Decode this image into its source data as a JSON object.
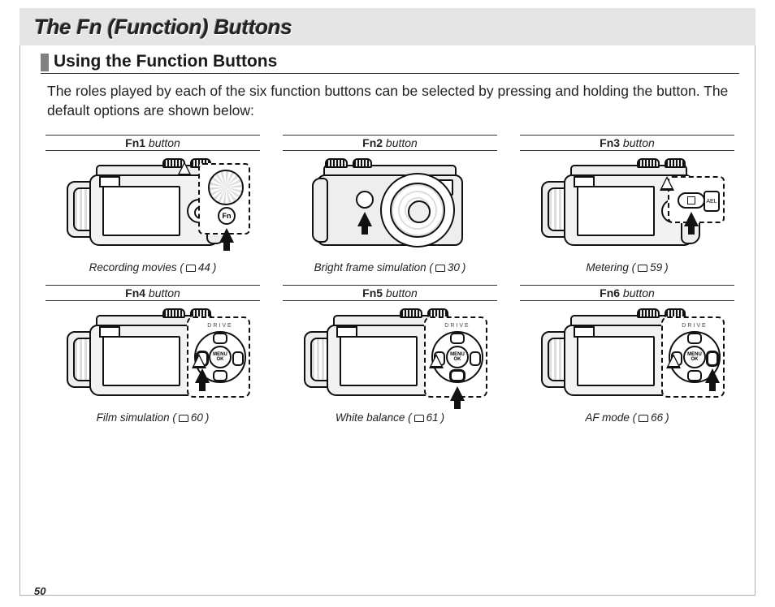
{
  "page": {
    "title": "The Fn (Function) Buttons",
    "section_heading": "Using the Function Buttons",
    "intro": "The roles played by each of the six function buttons can be selected by pressing and holding the button.  The default options are shown below:",
    "page_number": "50",
    "colors": {
      "title_bar_bg": "#e5e5e5",
      "rule": "#333333",
      "text": "#222222",
      "frame_border": "#b0b0b0"
    }
  },
  "buttons": [
    {
      "label_name": "Fn1",
      "label_word": "button",
      "caption_text": "Recording movies",
      "caption_page": "44",
      "view": "rear",
      "detail": "fn1"
    },
    {
      "label_name": "Fn2",
      "label_word": "button",
      "caption_text": "Bright frame simulation",
      "caption_page": "30",
      "view": "front",
      "detail": "fn2"
    },
    {
      "label_name": "Fn3",
      "label_word": "button",
      "caption_text": "Metering",
      "caption_page": "59",
      "view": "rear",
      "detail": "fn3"
    },
    {
      "label_name": "Fn4",
      "label_word": "button",
      "caption_text": "Film simulation",
      "caption_page": "60",
      "view": "rear",
      "detail": "sel",
      "highlight": "l"
    },
    {
      "label_name": "Fn5",
      "label_word": "button",
      "caption_text": "White balance",
      "caption_page": "61",
      "view": "rear",
      "detail": "sel",
      "highlight": "b"
    },
    {
      "label_name": "Fn6",
      "label_word": "button",
      "caption_text": "AF mode",
      "caption_page": "66",
      "view": "rear",
      "detail": "sel",
      "highlight": "r"
    }
  ]
}
